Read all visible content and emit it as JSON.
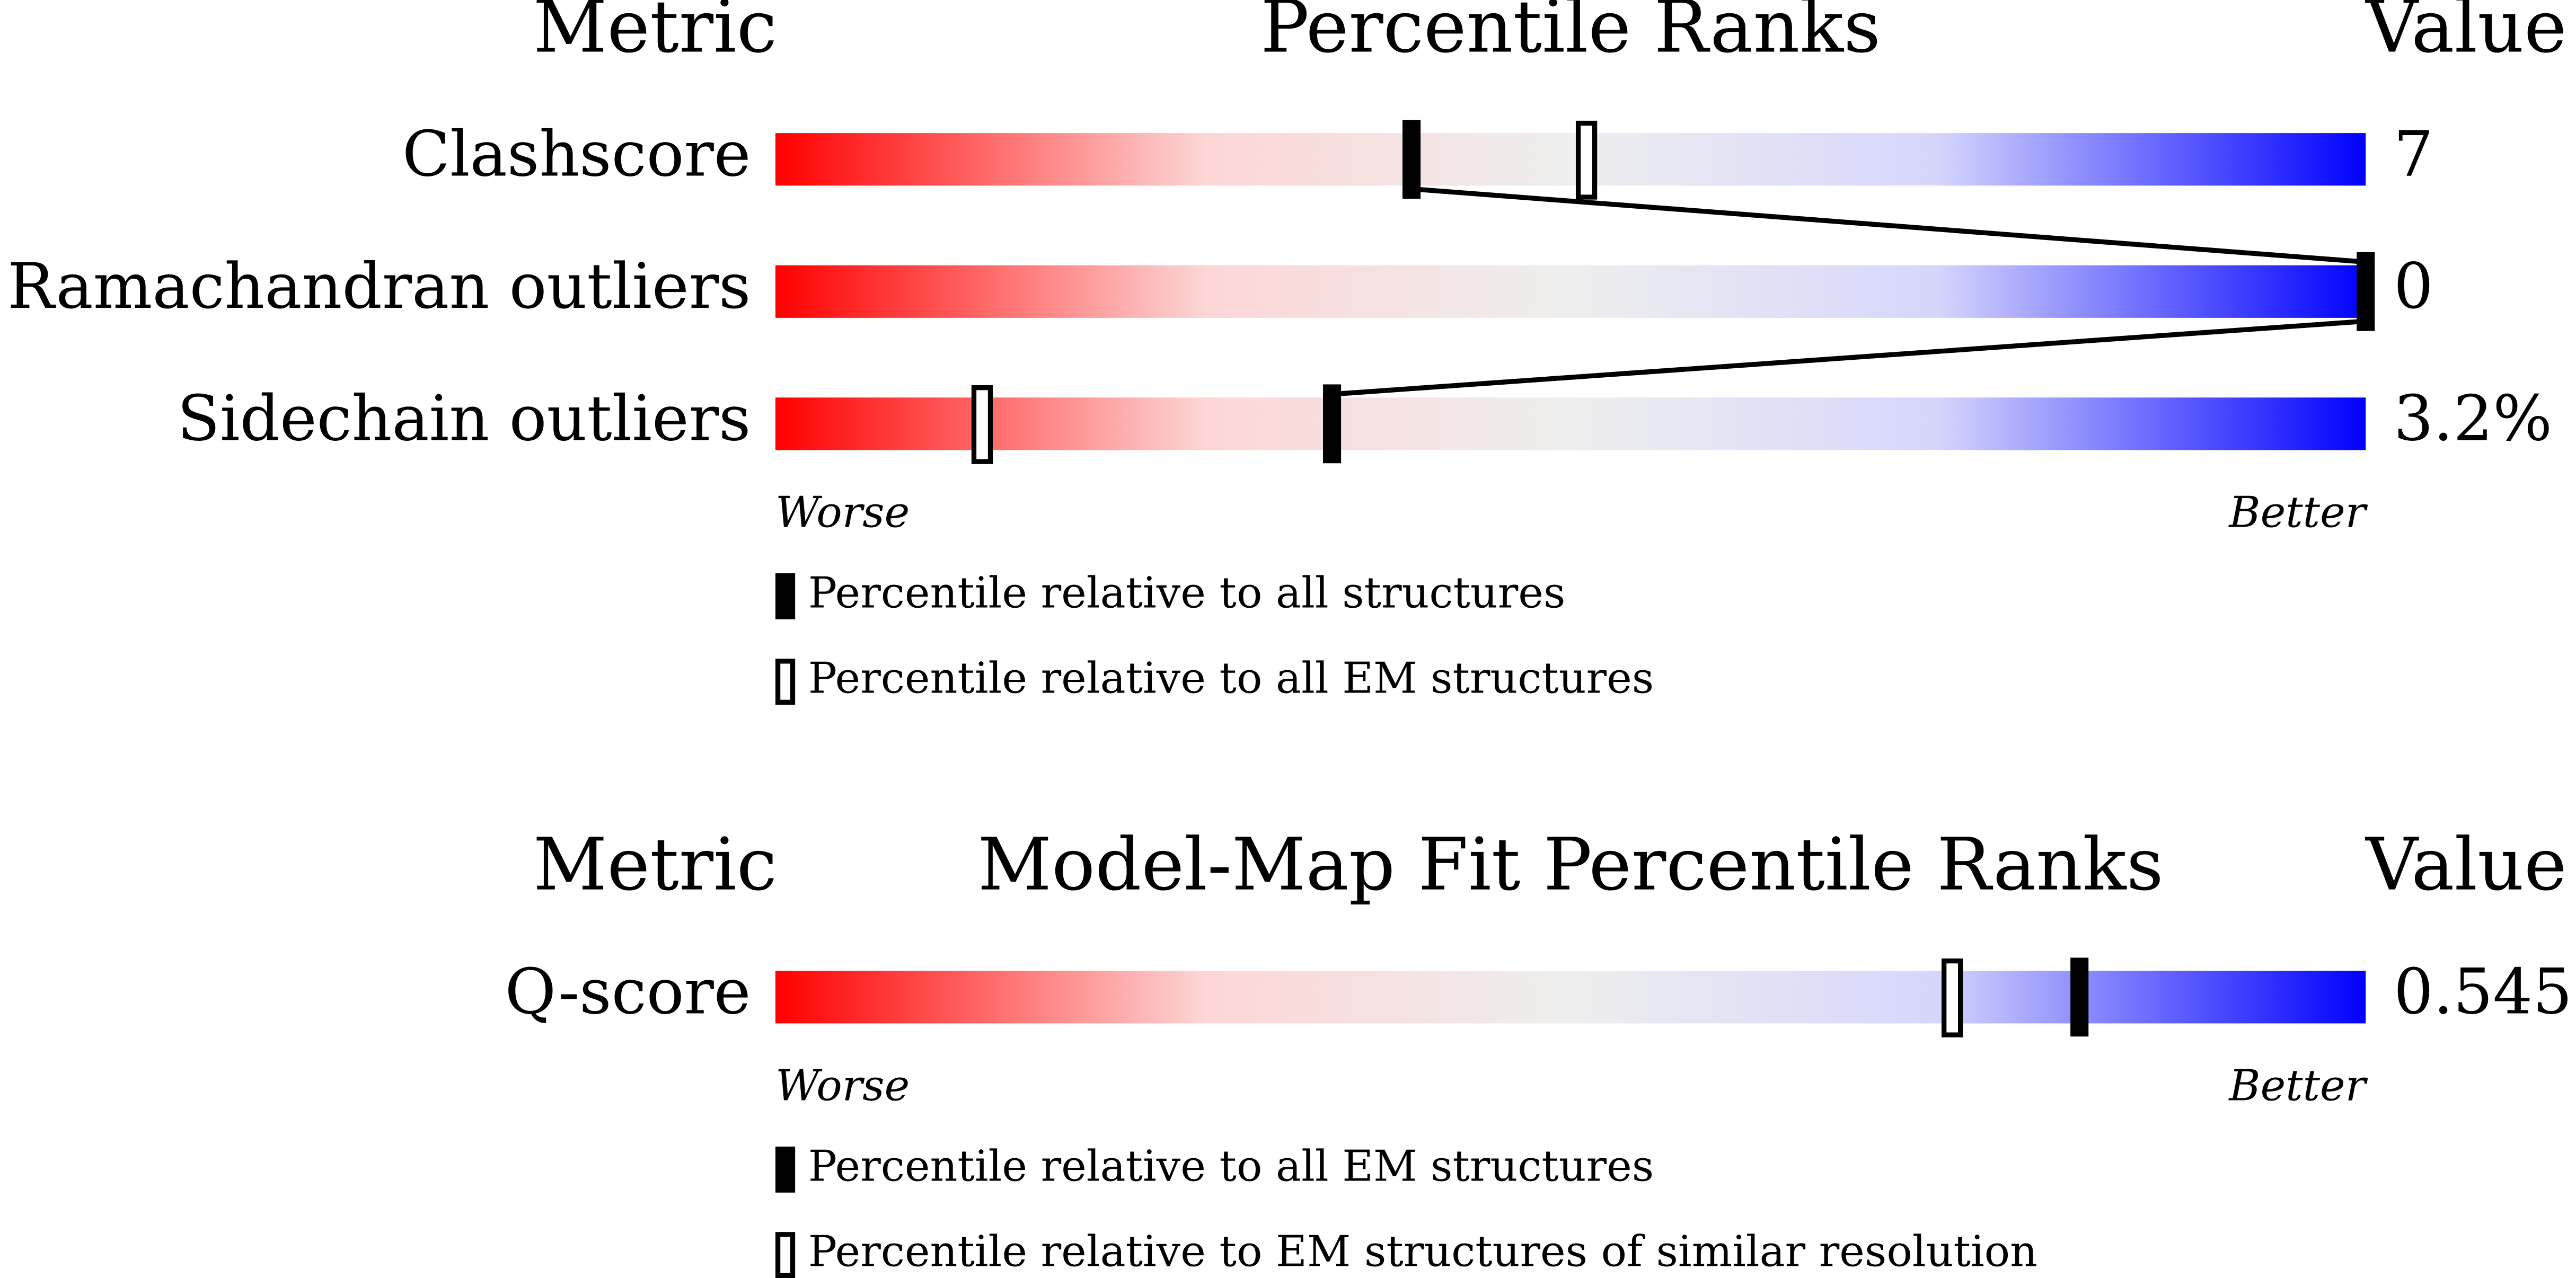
{
  "chart_data": [
    {
      "type": "percentile_slider",
      "headers": {
        "metric": "Metric",
        "title": "Percentile Ranks",
        "value": "Value"
      },
      "metrics": [
        "Clashscore",
        "Ramachandran outliers",
        "Sidechain outliers"
      ],
      "metric_values": [
        "7",
        "0",
        "3.2%"
      ],
      "series": [
        {
          "name": "Percentile relative to all structures",
          "style": "filled",
          "color": "#000000",
          "values": [
            40,
            100,
            35
          ]
        },
        {
          "name": "Percentile relative to all EM structures",
          "style": "open",
          "color": "#000000",
          "values": [
            51,
            null,
            13
          ]
        }
      ],
      "xlim": [
        0,
        100
      ],
      "low_label": "Worse",
      "high_label": "Better",
      "connect_series": 0
    },
    {
      "type": "percentile_slider",
      "headers": {
        "metric": "Metric",
        "title": "Model-Map Fit Percentile Ranks",
        "value": "Value"
      },
      "metrics": [
        "Q-score"
      ],
      "metric_values": [
        "0.545"
      ],
      "series": [
        {
          "name": "Percentile relative to all EM structures",
          "style": "filled",
          "color": "#000000",
          "values": [
            82
          ]
        },
        {
          "name": "Percentile relative to EM structures of similar resolution",
          "style": "open",
          "color": "#000000",
          "values": [
            74
          ]
        }
      ],
      "xlim": [
        0,
        100
      ],
      "low_label": "Worse",
      "high_label": "Better",
      "connect_series": 0
    }
  ]
}
